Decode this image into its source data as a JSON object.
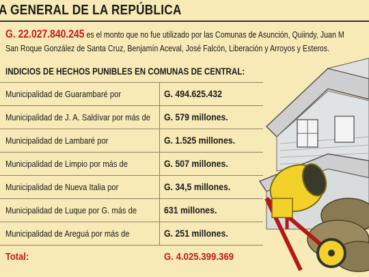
{
  "header": {
    "title": "A GENERAL DE LA REPÚBLICA"
  },
  "intro": {
    "amount": "G. 22.027.840.245",
    "line1_rest": " es el monto que no fue utilizado por las Comunas de Asunción, Quiindy, Juan M",
    "line2": "San Roque González de Santa Cruz, Benjamín Aceval, José Falcón, Liberación y Arroyos y Esteros."
  },
  "table": {
    "title": "INDICIOS DE HECHOS PUNIBLES EN COMUNAS DE CENTRAL:",
    "rows": [
      {
        "label": "Municipalidad de Guarambaré por",
        "value": "G. 494.625.432"
      },
      {
        "label": "Municipalidad de J. A. Saldívar por más de",
        "value": "G. 579 millones."
      },
      {
        "label": "Municipalidad de Lambaré por",
        "value": "G. 1.525 millones."
      },
      {
        "label": "Municipalidad de Limpio por más de",
        "value": "G. 507 millones."
      },
      {
        "label": "Municipalidad de Nueva Italia por",
        "value": "G. 34,5 millones."
      },
      {
        "label": "Municipalidad de Luque por G. más de",
        "value": "631 millones."
      },
      {
        "label": "Municipalidad de Areguá por más de",
        "value": "G. 251 millones."
      }
    ],
    "total": {
      "label": "Total:",
      "value": "G. 4.025.399.369"
    }
  },
  "illustration": {
    "icon": "construction-house-cement-mixer-icon"
  }
}
